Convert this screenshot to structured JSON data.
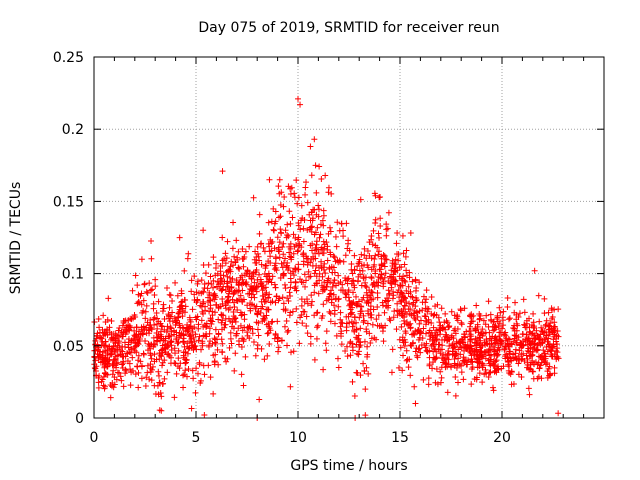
{
  "chart_data": {
    "type": "scatter",
    "title": "Day 075 of 2019, SRMTID for receiver reun",
    "xlabel": "GPS time / hours",
    "ylabel": "SRMTID / TECUs",
    "xlim": [
      0,
      25
    ],
    "ylim": [
      0,
      0.25
    ],
    "x_ticks": [
      0,
      5,
      10,
      15,
      20
    ],
    "x_tick_labels": [
      "0",
      "5",
      "10",
      "15",
      "20"
    ],
    "y_ticks": [
      0,
      0.05,
      0.1,
      0.15,
      0.2,
      0.25
    ],
    "y_tick_labels": [
      "0",
      "0.05",
      "0.1",
      "0.15",
      "0.2",
      "0.25"
    ],
    "grid": true,
    "marker": "plus",
    "marker_color": "#ff0000",
    "series": [
      {
        "name": "SRMTID",
        "description": "dense scatter of SRMTID values vs GPS time (approximated envelope)",
        "envelope": [
          {
            "x": 0.0,
            "mean": 0.045,
            "spread": 0.015
          },
          {
            "x": 1.0,
            "mean": 0.045,
            "spread": 0.015
          },
          {
            "x": 2.0,
            "mean": 0.055,
            "spread": 0.02
          },
          {
            "x": 2.5,
            "mean": 0.065,
            "spread": 0.025
          },
          {
            "x": 3.3,
            "mean": 0.045,
            "spread": 0.02
          },
          {
            "x": 4.0,
            "mean": 0.06,
            "spread": 0.02
          },
          {
            "x": 5.0,
            "mean": 0.065,
            "spread": 0.025
          },
          {
            "x": 6.0,
            "mean": 0.07,
            "spread": 0.025
          },
          {
            "x": 7.0,
            "mean": 0.085,
            "spread": 0.025
          },
          {
            "x": 8.0,
            "mean": 0.085,
            "spread": 0.025
          },
          {
            "x": 9.0,
            "mean": 0.1,
            "spread": 0.03
          },
          {
            "x": 10.0,
            "mean": 0.11,
            "spread": 0.035
          },
          {
            "x": 11.0,
            "mean": 0.11,
            "spread": 0.035
          },
          {
            "x": 12.0,
            "mean": 0.085,
            "spread": 0.025
          },
          {
            "x": 13.0,
            "mean": 0.07,
            "spread": 0.03
          },
          {
            "x": 14.0,
            "mean": 0.1,
            "spread": 0.025
          },
          {
            "x": 15.0,
            "mean": 0.085,
            "spread": 0.025
          },
          {
            "x": 16.0,
            "mean": 0.065,
            "spread": 0.02
          },
          {
            "x": 17.0,
            "mean": 0.05,
            "spread": 0.015
          },
          {
            "x": 18.0,
            "mean": 0.05,
            "spread": 0.015
          },
          {
            "x": 19.0,
            "mean": 0.05,
            "spread": 0.015
          },
          {
            "x": 20.0,
            "mean": 0.05,
            "spread": 0.015
          },
          {
            "x": 21.0,
            "mean": 0.05,
            "spread": 0.015
          },
          {
            "x": 22.0,
            "mean": 0.05,
            "spread": 0.015
          },
          {
            "x": 22.8,
            "mean": 0.05,
            "spread": 0.015
          }
        ],
        "notable_points": [
          {
            "x": 3.3,
            "y": 0.005
          },
          {
            "x": 3.3,
            "y": 0.015
          },
          {
            "x": 6.3,
            "y": 0.171
          },
          {
            "x": 8.0,
            "y": 0.0
          },
          {
            "x": 8.6,
            "y": 0.165
          },
          {
            "x": 10.0,
            "y": 0.221
          },
          {
            "x": 10.1,
            "y": 0.217
          },
          {
            "x": 10.8,
            "y": 0.193
          },
          {
            "x": 12.0,
            "y": 0.035
          },
          {
            "x": 12.8,
            "y": 0.0
          },
          {
            "x": 13.3,
            "y": 0.002
          },
          {
            "x": 13.3,
            "y": 0.02
          },
          {
            "x": 21.6,
            "y": 0.102
          }
        ]
      }
    ]
  }
}
